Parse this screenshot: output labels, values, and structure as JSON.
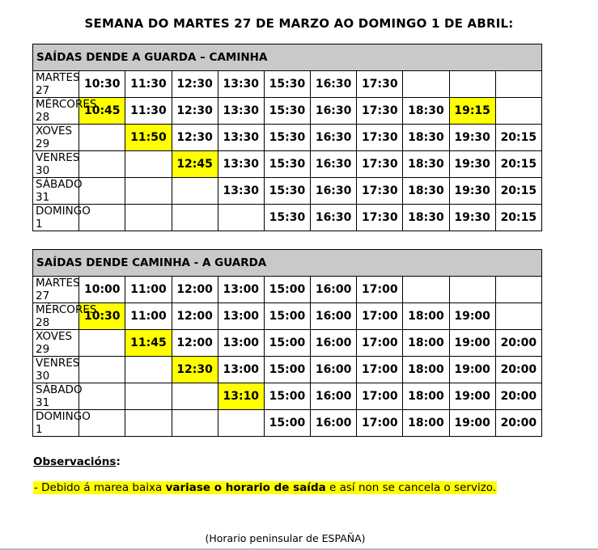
{
  "title": "SEMANA DO MARTES 27 DE MARZO AO DOMINGO 1 DE ABRIL:",
  "highlight_color": "#ffff00",
  "header_color": "#c9c9c9",
  "tables": [
    {
      "header": "SAÍDAS DENDE A GUARDA – CAMINHA",
      "rows": [
        {
          "day": "MARTES 27",
          "times": [
            "10:30",
            "11:30",
            "12:30",
            "13:30",
            "15:30",
            "16:30",
            "17:30",
            "",
            "",
            ""
          ],
          "highlight": []
        },
        {
          "day": "MÉRCORES 28",
          "times": [
            "10:45",
            "11:30",
            "12:30",
            "13:30",
            "15:30",
            "16:30",
            "17:30",
            "18:30",
            "19:15",
            ""
          ],
          "highlight": [
            0,
            8
          ]
        },
        {
          "day": "XOVES 29",
          "times": [
            "",
            "11:50",
            "12:30",
            "13:30",
            "15:30",
            "16:30",
            "17:30",
            "18:30",
            "19:30",
            "20:15"
          ],
          "highlight": [
            1
          ]
        },
        {
          "day": "VENRES 30",
          "times": [
            "",
            "",
            "12:45",
            "13:30",
            "15:30",
            "16:30",
            "17:30",
            "18:30",
            "19:30",
            "20:15"
          ],
          "highlight": [
            2
          ]
        },
        {
          "day": "SÁBADO 31",
          "times": [
            "",
            "",
            "",
            "13:30",
            "15:30",
            "16:30",
            "17:30",
            "18:30",
            "19:30",
            "20:15"
          ],
          "highlight": []
        },
        {
          "day": "DOMINGO 1",
          "times": [
            "",
            "",
            "",
            "",
            "15:30",
            "16:30",
            "17:30",
            "18:30",
            "19:30",
            "20:15"
          ],
          "highlight": []
        }
      ]
    },
    {
      "header": "SAÍDAS DENDE CAMINHA  - A GUARDA",
      "rows": [
        {
          "day": "MARTES 27",
          "times": [
            "10:00",
            "11:00",
            "12:00",
            "13:00",
            "15:00",
            "16:00",
            "17:00",
            "",
            "",
            ""
          ],
          "highlight": []
        },
        {
          "day": "MÉRCORES 28",
          "times": [
            "10:30",
            "11:00",
            "12:00",
            "13:00",
            "15:00",
            "16:00",
            "17:00",
            "18:00",
            "19:00",
            ""
          ],
          "highlight": [
            0
          ]
        },
        {
          "day": "XOVES 29",
          "times": [
            "",
            "11:45",
            "12:00",
            "13:00",
            "15:00",
            "16:00",
            "17:00",
            "18:00",
            "19:00",
            "20:00"
          ],
          "highlight": [
            1
          ]
        },
        {
          "day": "VENRES 30",
          "times": [
            "",
            "",
            "12:30",
            "13:00",
            "15:00",
            "16:00",
            "17:00",
            "18:00",
            "19:00",
            "20:00"
          ],
          "highlight": [
            2
          ]
        },
        {
          "day": "SÁBADO 31",
          "times": [
            "",
            "",
            "",
            "13:10",
            "15:00",
            "16:00",
            "17:00",
            "18:00",
            "19:00",
            "20:00"
          ],
          "highlight": [
            3
          ]
        },
        {
          "day": "DOMINGO 1",
          "times": [
            "",
            "",
            "",
            "",
            "15:00",
            "16:00",
            "17:00",
            "18:00",
            "19:00",
            "20:00"
          ],
          "highlight": []
        }
      ]
    }
  ],
  "observations": {
    "label": "Observacións",
    "colon": ":",
    "note_prefix": "- Debido á marea baixa ",
    "note_bold": "variase o horario de saída",
    "note_suffix": " e así non se cancela o servizo."
  },
  "footer": "(Horario peninsular de ESPAÑA)"
}
